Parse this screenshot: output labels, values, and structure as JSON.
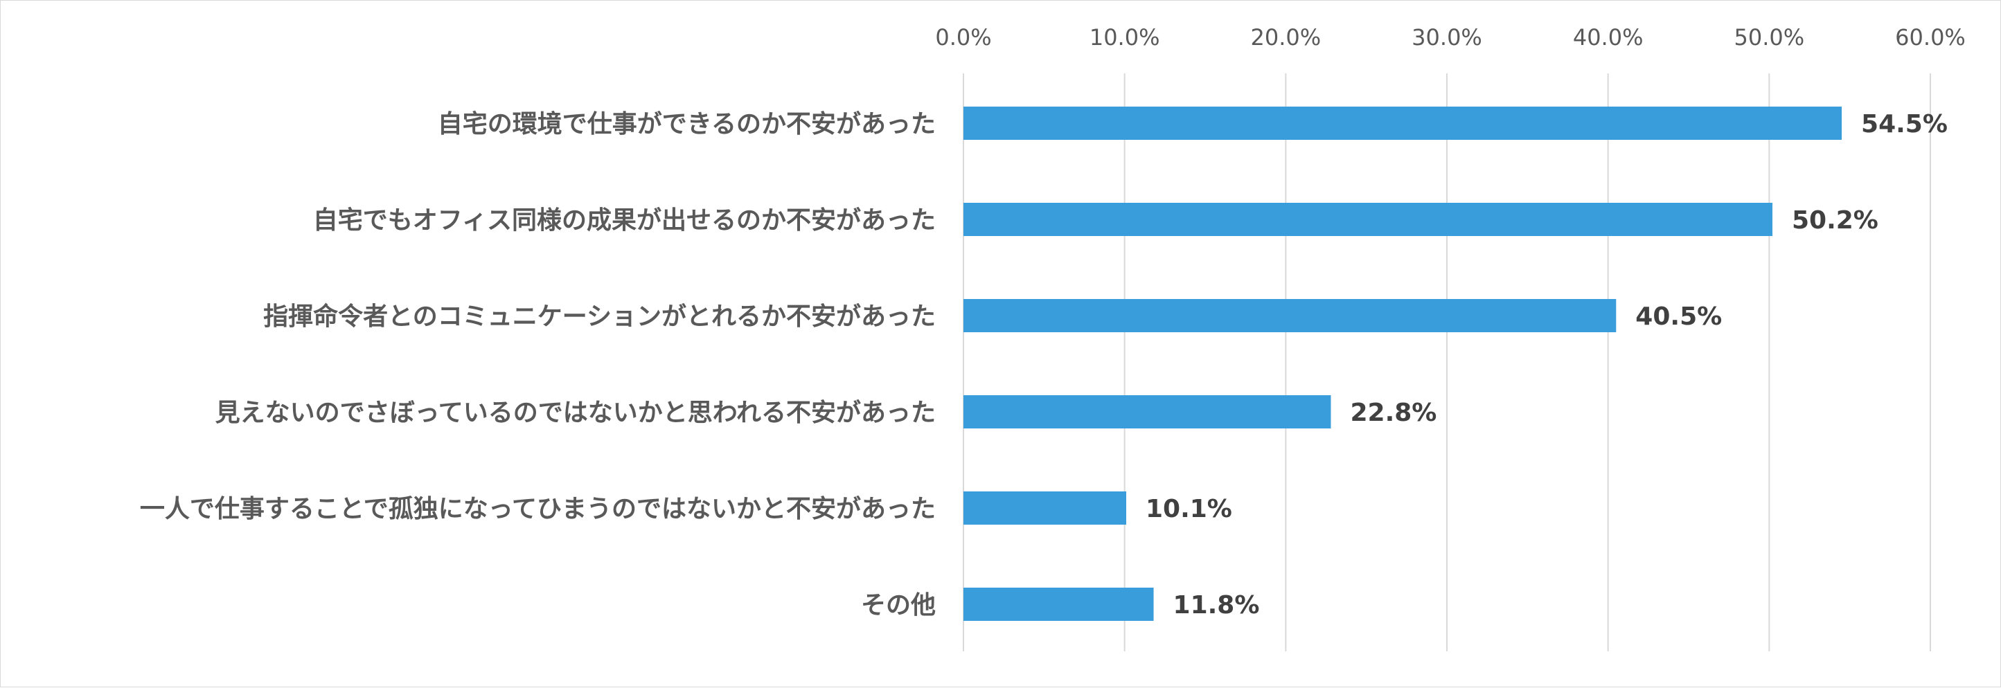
{
  "chart_data": {
    "type": "bar",
    "orientation": "horizontal",
    "title": "",
    "xlabel": "",
    "ylabel": "",
    "xlim": [
      0,
      60
    ],
    "tick_values": [
      0,
      10,
      20,
      30,
      40,
      50,
      60
    ],
    "tick_labels": [
      "0.0%",
      "10.0%",
      "20.0%",
      "30.0%",
      "40.0%",
      "50.0%",
      "60.0%"
    ],
    "grid": true,
    "legend": "none",
    "bar_color": "#3a9ddb",
    "categories": [
      "自宅の環境で仕事ができるのか不安があった",
      "自宅でもオフィス同様の成果が出せるのか不安があった",
      "指揮命令者とのコミュニケーションがとれるか不安があった",
      "見えないのでさぼっているのではないかと思われる不安があった",
      "一人で仕事することで孤独になってひまうのではないかと不安があった",
      "その他"
    ],
    "values": [
      54.5,
      50.2,
      40.5,
      22.8,
      10.1,
      11.8
    ],
    "value_labels": [
      "54.5%",
      "50.2%",
      "40.5%",
      "22.8%",
      "10.1%",
      "11.8%"
    ]
  }
}
